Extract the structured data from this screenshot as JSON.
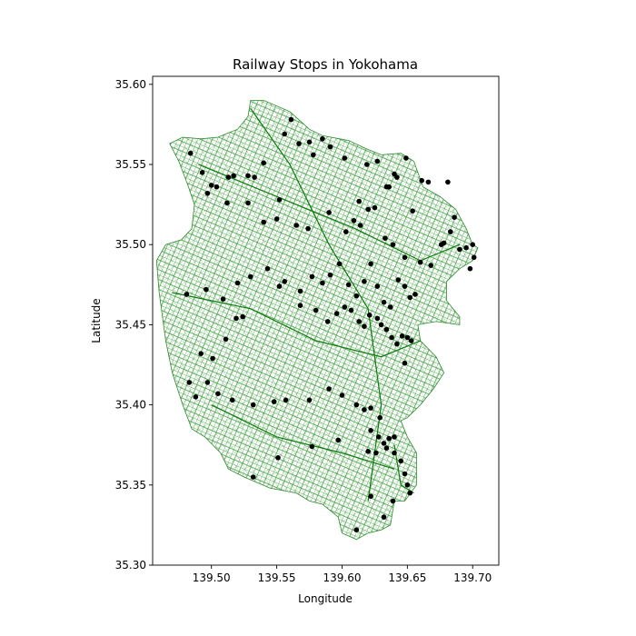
{
  "chart_data": {
    "type": "scatter",
    "title": "Railway Stops in Yokohama",
    "xlabel": "Longitude",
    "ylabel": "Latitude",
    "xlim": [
      139.455,
      139.72
    ],
    "ylim": [
      35.3,
      35.605
    ],
    "xticks": [
      {
        "value": 139.5,
        "label": "139.50"
      },
      {
        "value": 139.55,
        "label": "139.55"
      },
      {
        "value": 139.6,
        "label": "139.60"
      },
      {
        "value": 139.65,
        "label": "139.65"
      },
      {
        "value": 139.7,
        "label": "139.70"
      }
    ],
    "yticks": [
      {
        "value": 35.3,
        "label": "35.30"
      },
      {
        "value": 35.35,
        "label": "35.35"
      },
      {
        "value": 35.4,
        "label": "35.40"
      },
      {
        "value": 35.45,
        "label": "35.45"
      },
      {
        "value": 35.5,
        "label": "35.50"
      },
      {
        "value": 35.55,
        "label": "35.55"
      },
      {
        "value": 35.6,
        "label": "35.60"
      }
    ],
    "grid": false,
    "legend": "none",
    "background_layer": {
      "kind": "road network",
      "color": "#3a9a3a",
      "dense_color": "#0a7a0a",
      "outline": [
        [
          139.53,
          35.59
        ],
        [
          139.54,
          35.59
        ],
        [
          139.56,
          35.583
        ],
        [
          139.575,
          35.572
        ],
        [
          139.585,
          35.568
        ],
        [
          139.605,
          35.565
        ],
        [
          139.618,
          35.56
        ],
        [
          139.63,
          35.556
        ],
        [
          139.645,
          35.557
        ],
        [
          139.655,
          35.552
        ],
        [
          139.662,
          35.536
        ],
        [
          139.675,
          35.53
        ],
        [
          139.687,
          35.522
        ],
        [
          139.695,
          35.51
        ],
        [
          139.7,
          35.5
        ],
        [
          139.704,
          35.498
        ],
        [
          139.7,
          35.49
        ],
        [
          139.69,
          35.485
        ],
        [
          139.68,
          35.477
        ],
        [
          139.68,
          35.465
        ],
        [
          139.69,
          35.455
        ],
        [
          139.69,
          35.45
        ],
        [
          139.672,
          35.452
        ],
        [
          139.658,
          35.45
        ],
        [
          139.66,
          35.44
        ],
        [
          139.672,
          35.43
        ],
        [
          139.678,
          35.42
        ],
        [
          139.67,
          35.41
        ],
        [
          139.66,
          35.4
        ],
        [
          139.65,
          35.392
        ],
        [
          139.645,
          35.39
        ],
        [
          139.65,
          35.38
        ],
        [
          139.657,
          35.37
        ],
        [
          139.657,
          35.35
        ],
        [
          139.648,
          35.34
        ],
        [
          139.64,
          35.34
        ],
        [
          139.637,
          35.325
        ],
        [
          139.63,
          35.322
        ],
        [
          139.62,
          35.32
        ],
        [
          139.611,
          35.316
        ],
        [
          139.6,
          35.32
        ],
        [
          139.597,
          35.33
        ],
        [
          139.585,
          35.338
        ],
        [
          139.575,
          35.34
        ],
        [
          139.565,
          35.345
        ],
        [
          139.545,
          35.348
        ],
        [
          139.525,
          35.355
        ],
        [
          139.513,
          35.36
        ],
        [
          139.507,
          35.37
        ],
        [
          139.495,
          35.38
        ],
        [
          139.485,
          35.385
        ],
        [
          139.478,
          35.4
        ],
        [
          139.47,
          35.42
        ],
        [
          139.465,
          35.44
        ],
        [
          139.46,
          35.47
        ],
        [
          139.458,
          35.49
        ],
        [
          139.465,
          35.5
        ],
        [
          139.477,
          35.503
        ],
        [
          139.485,
          35.51
        ],
        [
          139.487,
          35.525
        ],
        [
          139.482,
          35.537
        ],
        [
          139.475,
          35.552
        ],
        [
          139.468,
          35.563
        ],
        [
          139.478,
          35.567
        ],
        [
          139.492,
          35.566
        ],
        [
          139.505,
          35.567
        ],
        [
          139.52,
          35.572
        ],
        [
          139.528,
          35.58
        ],
        [
          139.53,
          35.59
        ]
      ]
    },
    "series": [
      {
        "color": "#000000",
        "marker": "o",
        "x": [
          139.484,
          139.493,
          139.497,
          139.504,
          139.512,
          139.517,
          139.528,
          139.533,
          139.54,
          139.552,
          139.556,
          139.561,
          139.567,
          139.575,
          139.578,
          139.585,
          139.591,
          139.602,
          139.613,
          139.619,
          139.627,
          139.634,
          139.636,
          139.64,
          139.642,
          139.649,
          139.654,
          139.661,
          139.666,
          139.676,
          139.681,
          139.69,
          139.695,
          139.7,
          139.701,
          139.5,
          139.513,
          139.528,
          139.54,
          139.55,
          139.565,
          139.574,
          139.59,
          139.603,
          139.609,
          139.614,
          139.62,
          139.625,
          139.633,
          139.639,
          139.648,
          139.66,
          139.668,
          139.678,
          139.683,
          139.686,
          139.698,
          139.481,
          139.496,
          139.509,
          139.52,
          139.53,
          139.543,
          139.556,
          139.568,
          139.577,
          139.585,
          139.591,
          139.598,
          139.605,
          139.611,
          139.617,
          139.622,
          139.627,
          139.632,
          139.637,
          139.643,
          139.648,
          139.652,
          139.656,
          139.492,
          139.501,
          139.511,
          139.519,
          139.524,
          139.552,
          139.568,
          139.58,
          139.589,
          139.596,
          139.602,
          139.607,
          139.613,
          139.617,
          139.621,
          139.627,
          139.63,
          139.634,
          139.638,
          139.642,
          139.646,
          139.65,
          139.653,
          139.648,
          139.483,
          139.488,
          139.497,
          139.505,
          139.516,
          139.532,
          139.548,
          139.557,
          139.575,
          139.59,
          139.6,
          139.611,
          139.617,
          139.622,
          139.629,
          139.636,
          139.64,
          139.632,
          139.626,
          139.62,
          139.551,
          139.532,
          139.577,
          139.597,
          139.622,
          139.628,
          139.634,
          139.64,
          139.645,
          139.648,
          139.65,
          139.652,
          139.639,
          139.622,
          139.632,
          139.611
        ],
        "y": [
          35.557,
          35.545,
          35.532,
          35.536,
          35.526,
          35.543,
          35.543,
          35.542,
          35.551,
          35.528,
          35.569,
          35.578,
          35.563,
          35.564,
          35.556,
          35.566,
          35.561,
          35.554,
          35.527,
          35.55,
          35.552,
          35.536,
          35.536,
          35.544,
          35.542,
          35.554,
          35.521,
          35.54,
          35.539,
          35.5,
          35.539,
          35.497,
          35.498,
          35.5,
          35.492,
          35.537,
          35.542,
          35.526,
          35.514,
          35.516,
          35.512,
          35.51,
          35.52,
          35.508,
          35.515,
          35.512,
          35.522,
          35.523,
          35.504,
          35.5,
          35.492,
          35.489,
          35.487,
          35.501,
          35.508,
          35.517,
          35.485,
          35.469,
          35.472,
          35.466,
          35.476,
          35.48,
          35.485,
          35.477,
          35.471,
          35.48,
          35.476,
          35.481,
          35.488,
          35.475,
          35.468,
          35.477,
          35.488,
          35.474,
          35.464,
          35.461,
          35.478,
          35.474,
          35.467,
          35.469,
          35.432,
          35.429,
          35.441,
          35.454,
          35.455,
          35.474,
          35.462,
          35.459,
          35.452,
          35.457,
          35.461,
          35.459,
          35.452,
          35.449,
          35.456,
          35.454,
          35.45,
          35.447,
          35.442,
          35.438,
          35.443,
          35.442,
          35.44,
          35.426,
          35.414,
          35.405,
          35.414,
          35.407,
          35.403,
          35.4,
          35.402,
          35.403,
          35.403,
          35.41,
          35.406,
          35.4,
          35.397,
          35.398,
          35.392,
          35.379,
          35.38,
          35.376,
          35.37,
          35.371,
          35.367,
          35.355,
          35.374,
          35.378,
          35.384,
          35.38,
          35.373,
          35.37,
          35.365,
          35.357,
          35.35,
          35.345,
          35.34,
          35.343,
          35.33,
          35.322
        ]
      }
    ]
  }
}
